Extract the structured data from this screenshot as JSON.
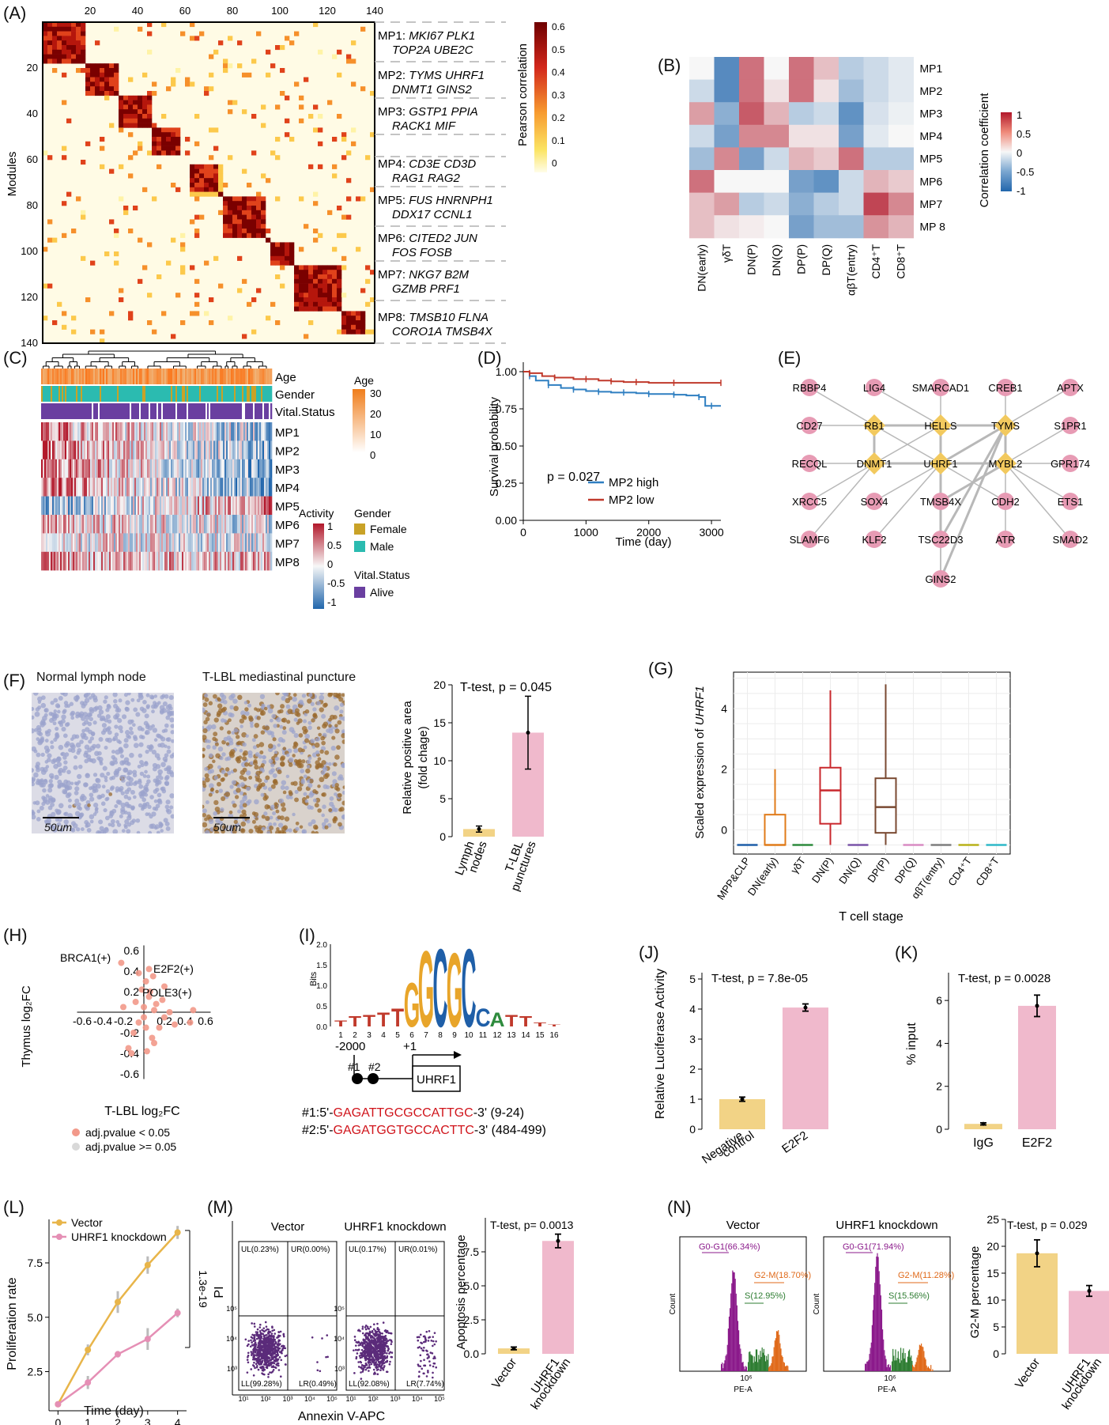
{
  "panel_labels": [
    "(A)",
    "(B)",
    "(C)",
    "(D)",
    "(E)",
    "(F)",
    "(G)",
    "(H)",
    "(I)",
    "(J)",
    "(K)",
    "(L)",
    "(M)",
    "(N)"
  ],
  "panelA": {
    "ylabel": "Modules",
    "ticks": [
      "20",
      "40",
      "60",
      "80",
      "100",
      "120",
      "140"
    ],
    "legend_title": "Pearson correlation",
    "legend_ticks": [
      "0.6",
      "0.5",
      "0.4",
      "0.3",
      "0.2",
      "0.1",
      "0"
    ],
    "mp": [
      {
        "id": "MP1:",
        "genes1": "MKI67 PLK1",
        "genes2": "TOP2A UBE2C"
      },
      {
        "id": "MP2:",
        "genes1": "TYMS UHRF1",
        "genes2": "DNMT1 GINS2"
      },
      {
        "id": "MP3:",
        "genes1": "GSTP1 PPIA",
        "genes2": "RACK1 MIF"
      },
      {
        "id": "MP4:",
        "genes1": "CD3E CD3D",
        "genes2": "RAG1 RAG2"
      },
      {
        "id": "MP5:",
        "genes1": "FUS HNRNPH1",
        "genes2": "DDX17 CCNL1"
      },
      {
        "id": "MP6:",
        "genes1": "CITED2 JUN",
        "genes2": "FOS FOSB"
      },
      {
        "id": "MP7:",
        "genes1": "NKG7 B2M",
        "genes2": "GZMB PRF1"
      },
      {
        "id": "MP8:",
        "genes1": "TMSB10 FLNA",
        "genes2": "CORO1A TMSB4X"
      }
    ]
  },
  "panelB": {
    "rows": [
      "MP1",
      "MP2",
      "MP3",
      "MP4",
      "MP5",
      "MP6",
      "MP7",
      "MP 8"
    ],
    "cols": [
      "DN(early)",
      "γδT",
      "DN(P)",
      "DN(Q)",
      "DP(P)",
      "DP(Q)",
      "αβT(entry)",
      "CD4⁺T",
      "CD8⁺T"
    ],
    "matrix": [
      [
        0.0,
        -0.75,
        0.6,
        0.0,
        0.6,
        0.25,
        -0.3,
        -0.2,
        -0.1
      ],
      [
        -0.2,
        -0.75,
        0.6,
        0.1,
        0.6,
        0.1,
        -0.4,
        -0.2,
        -0.1
      ],
      [
        0.4,
        -0.5,
        0.7,
        0.3,
        -0.3,
        -0.2,
        -0.7,
        -0.15,
        -0.05
      ],
      [
        -0.2,
        -0.6,
        0.5,
        0.5,
        0.1,
        0.1,
        -0.6,
        -0.1,
        0.0
      ],
      [
        -0.4,
        0.5,
        -0.6,
        -0.2,
        0.3,
        0.2,
        0.6,
        -0.3,
        -0.3
      ],
      [
        0.6,
        0.0,
        0.0,
        0.0,
        -0.6,
        -0.7,
        -0.2,
        0.3,
        0.2
      ],
      [
        0.25,
        0.4,
        -0.3,
        -0.2,
        -0.5,
        -0.3,
        -0.2,
        0.8,
        0.5
      ],
      [
        0.25,
        0.1,
        0.05,
        0.0,
        -0.6,
        -0.4,
        -0.4,
        0.45,
        0.3
      ]
    ],
    "legend_title": "Correlation coefficient",
    "legend_ticks": [
      "1",
      "0.5",
      "0",
      "-0.5",
      "-1"
    ]
  },
  "panelC": {
    "annot": [
      "Age",
      "Gender",
      "Vital.Status"
    ],
    "rows": [
      "MP1",
      "MP2",
      "MP3",
      "MP4",
      "MP5",
      "MP6",
      "MP7",
      "MP8"
    ],
    "age_title": "Age",
    "age_ticks": [
      "30",
      "20",
      "10",
      "0"
    ],
    "activity_title": "Activity",
    "activity_ticks": [
      "1",
      "0.5",
      "0",
      "-0.5",
      "-1"
    ],
    "gender_title": "Gender",
    "gender_items": [
      {
        "label": "Female",
        "color": "#c9a227"
      },
      {
        "label": "Male",
        "color": "#2bbbb0"
      }
    ],
    "vital_title": "Vital.Status",
    "vital_items": [
      {
        "label": "Alive",
        "color": "#6a3fa0"
      }
    ]
  },
  "panelD": {
    "ylabel": "Survival probability",
    "xlabel": "Time (day)",
    "pvalue": "p = 0.027",
    "legend": [
      {
        "label": "MP2 high",
        "color": "#2f7fc1"
      },
      {
        "label": "MP2 low",
        "color": "#c0392b"
      }
    ],
    "chart_data": {
      "type": "line",
      "x_ticks": [
        "0",
        "1000",
        "2000",
        "3000"
      ],
      "y_ticks": [
        "0.00",
        "0.25",
        "0.50",
        "0.75",
        "1.00"
      ],
      "xlim": [
        0,
        3150
      ],
      "ylim": [
        0,
        1
      ],
      "series": [
        {
          "name": "MP2 high",
          "x": [
            0,
            100,
            200,
            400,
            600,
            800,
            1000,
            1200,
            1400,
            1600,
            1800,
            2000,
            2200,
            2400,
            2600,
            2800,
            2900,
            3000,
            3150
          ],
          "y": [
            1.0,
            0.97,
            0.94,
            0.91,
            0.89,
            0.88,
            0.87,
            0.865,
            0.86,
            0.86,
            0.855,
            0.85,
            0.85,
            0.845,
            0.84,
            0.83,
            0.77,
            0.77,
            0.77
          ]
        },
        {
          "name": "MP2 low",
          "x": [
            0,
            100,
            300,
            500,
            800,
            1000,
            1200,
            1400,
            1600,
            1800,
            2000,
            2400,
            2800,
            3150
          ],
          "y": [
            1.0,
            0.99,
            0.97,
            0.96,
            0.95,
            0.95,
            0.94,
            0.935,
            0.93,
            0.93,
            0.925,
            0.925,
            0.925,
            0.925
          ]
        }
      ]
    }
  },
  "panelE": {
    "nodes": [
      {
        "label": "RBBP4",
        "shape": "c"
      },
      {
        "label": "LIG4",
        "shape": "c"
      },
      {
        "label": "SMARCAD1",
        "shape": "c"
      },
      {
        "label": "CREB1",
        "shape": "c"
      },
      {
        "label": "APTX",
        "shape": "c"
      },
      {
        "label": "CD27",
        "shape": "c"
      },
      {
        "label": "RB1",
        "shape": "d"
      },
      {
        "label": "HELLS",
        "shape": "d"
      },
      {
        "label": "TYMS",
        "shape": "d"
      },
      {
        "label": "S1PR1",
        "shape": "c"
      },
      {
        "label": "RECQL",
        "shape": "c"
      },
      {
        "label": "DNMT1",
        "shape": "d"
      },
      {
        "label": "UHRF1",
        "shape": "d"
      },
      {
        "label": "MYBL2",
        "shape": "d"
      },
      {
        "label": "GPR174",
        "shape": "c"
      },
      {
        "label": "XRCC5",
        "shape": "c"
      },
      {
        "label": "SOX4",
        "shape": "c"
      },
      {
        "label": "TMSB4X",
        "shape": "c"
      },
      {
        "label": "CDH2",
        "shape": "c"
      },
      {
        "label": "ETS1",
        "shape": "c"
      },
      {
        "label": "SLAMF6",
        "shape": "c"
      },
      {
        "label": "KLF2",
        "shape": "c"
      },
      {
        "label": "TSC22D3",
        "shape": "c"
      },
      {
        "label": "ATR",
        "shape": "c"
      },
      {
        "label": "SMAD2",
        "shape": "c"
      },
      {
        "label": "GINS2",
        "shape": "c"
      }
    ]
  },
  "panelF": {
    "img1_title": "Normal lymph node",
    "img2_title": "T-LBL mediastinal puncture",
    "scale": "50um",
    "test": "T-test, p = 0.045",
    "ylabel1": "Relative positive area",
    "ylabel2": "(fold chage)",
    "chart_data": {
      "type": "bar",
      "categories": [
        "Lymph nodes",
        "T-LBL punctures"
      ],
      "values": [
        1.0,
        13.7
      ],
      "error": [
        0.4,
        4.8
      ],
      "ylim": [
        0,
        20
      ],
      "y_ticks": [
        "0",
        "5",
        "10",
        "15",
        "20"
      ]
    }
  },
  "panelG": {
    "ylabel_pre": "Scaled expression of ",
    "ylabel_gene": "UHRF1",
    "xlabel": "T cell stage",
    "chart_data": {
      "type": "box",
      "categories": [
        "MPP&CLP",
        "DN(early)",
        "γδT",
        "DN(P)",
        "DN(Q)",
        "DP(P)",
        "DP(Q)",
        "αβT(entry)",
        "CD4⁺T",
        "CD8⁺T"
      ],
      "colors": [
        "#1f5fa8",
        "#e07b1a",
        "#2e8b3d",
        "#c9282d",
        "#7a55a8",
        "#7a4a32",
        "#d98cc4",
        "#7f7f7f",
        "#b8b21a",
        "#2fb8c8"
      ],
      "q1": [
        -0.5,
        -0.5,
        -0.5,
        0.2,
        -0.5,
        -0.1,
        -0.5,
        -0.5,
        -0.5,
        -0.5
      ],
      "median": [
        -0.5,
        -0.5,
        -0.5,
        1.3,
        -0.5,
        0.75,
        -0.5,
        -0.5,
        -0.5,
        -0.5
      ],
      "q3": [
        -0.5,
        0.5,
        -0.5,
        2.05,
        -0.5,
        1.7,
        -0.5,
        -0.5,
        -0.5,
        -0.5
      ],
      "lo": [
        -0.5,
        -0.5,
        -0.5,
        -0.5,
        -0.5,
        -0.5,
        -0.5,
        -0.5,
        -0.5,
        -0.5
      ],
      "hi": [
        -0.5,
        2.0,
        -0.5,
        4.6,
        -0.5,
        4.8,
        -0.5,
        -0.5,
        -0.5,
        -0.5
      ],
      "ylim": [
        -0.8,
        5.2
      ],
      "y_ticks": [
        "0",
        "2",
        "4"
      ]
    }
  },
  "panelH": {
    "ylabel": "Thymus log₂FC",
    "xlabel": "T-LBL log₂FC",
    "labels": [
      "BRCA1(+)",
      "E2F2(+)",
      "POLE3(+)"
    ],
    "ticks": [
      "0.6",
      "0.4",
      "0.2",
      "-0.2",
      "-0.4",
      "-0.6"
    ],
    "xticks": [
      "-0.6",
      "-0.4",
      "-0.2",
      "0.2",
      "0.4",
      "0.6"
    ],
    "legend": [
      {
        "label": "adj.pvalue < 0.05",
        "color": "#f2998a"
      },
      {
        "label": "adj.pvalue >= 0.05",
        "color": "#d9d9d9"
      }
    ],
    "chart_data": {
      "type": "scatter",
      "xlim": [
        -0.65,
        0.65
      ],
      "ylim": [
        -0.65,
        0.65
      ],
      "points": [
        [
          -0.22,
          0.48
        ],
        [
          0.05,
          0.42
        ],
        [
          0.02,
          0.3
        ],
        [
          -0.08,
          0.1
        ],
        [
          0.0,
          0.05
        ],
        [
          0.05,
          0.15
        ],
        [
          0.1,
          0.02
        ],
        [
          0.2,
          -0.05
        ],
        [
          0.25,
          0.0
        ],
        [
          0.45,
          -0.1
        ],
        [
          0.48,
          0.02
        ],
        [
          -0.05,
          -0.1
        ],
        [
          0.02,
          -0.15
        ],
        [
          0.08,
          -0.25
        ],
        [
          0.1,
          -0.3
        ],
        [
          -0.1,
          -0.2
        ],
        [
          -0.15,
          -0.35
        ],
        [
          -0.12,
          -0.4
        ],
        [
          0.0,
          -0.05
        ],
        [
          0.12,
          0.08
        ],
        [
          0.18,
          0.12
        ],
        [
          -0.02,
          0.22
        ],
        [
          0.06,
          0.2
        ],
        [
          0.15,
          -0.15
        ],
        [
          0.3,
          -0.12
        ],
        [
          -0.2,
          0.05
        ],
        [
          0.03,
          -0.38
        ],
        [
          0.09,
          0.35
        ],
        [
          -0.05,
          0.38
        ],
        [
          0.2,
          0.25
        ]
      ]
    }
  },
  "panelI": {
    "ylabel": "Bits",
    "yticks": [
      "2.0",
      "1.5",
      "1.0",
      "0.5",
      "0.0"
    ],
    "positions": [
      "1",
      "2",
      "3",
      "4",
      "5",
      "6",
      "7",
      "8",
      "9",
      "10",
      "11",
      "12",
      "13",
      "14",
      "15",
      "16"
    ],
    "logo": [
      {
        "l": "T",
        "h": 0.15,
        "c": "#c0392b"
      },
      {
        "l": "T",
        "h": 0.25,
        "c": "#c0392b"
      },
      {
        "l": "T",
        "h": 0.3,
        "c": "#c0392b"
      },
      {
        "l": "T",
        "h": 0.35,
        "c": "#c0392b"
      },
      {
        "l": "T",
        "h": 0.45,
        "c": "#c0392b"
      },
      {
        "l": "G",
        "h": 1.1,
        "c": "#e8a52a"
      },
      {
        "l": "G",
        "h": 1.9,
        "c": "#e8a52a"
      },
      {
        "l": "C",
        "h": 1.95,
        "c": "#1f5fa8"
      },
      {
        "l": "G",
        "h": 1.85,
        "c": "#e8a52a"
      },
      {
        "l": "C",
        "h": 1.95,
        "c": "#1f5fa8"
      },
      {
        "l": "C",
        "h": 0.45,
        "c": "#1f5fa8"
      },
      {
        "l": "A",
        "h": 0.35,
        "c": "#2e8b3d"
      },
      {
        "l": "T",
        "h": 0.3,
        "c": "#c0392b"
      },
      {
        "l": "T",
        "h": 0.25,
        "c": "#c0392b"
      },
      {
        "l": "T",
        "h": 0.1,
        "c": "#c0392b"
      },
      {
        "l": "T",
        "h": 0.05,
        "c": "#c0392b"
      }
    ],
    "pos_left": "-2000",
    "pos_right": "+1",
    "site1": "#1",
    "site2": "#2",
    "gene": "UHRF1",
    "seqs": [
      {
        "pre": "#1:5'-",
        "seq": "GAGATTGCGCCATTGC",
        "post": "-3' (9-24)"
      },
      {
        "pre": "#2:5'-",
        "seq": "GAGATGGTGCCACTTC",
        "post": "-3' (484-499)"
      }
    ]
  },
  "panelJ": {
    "test": "T-test, p = 7.8e-05",
    "ylabel": "Relative Luciferase Activity",
    "chart_data": {
      "type": "bar",
      "categories": [
        "Negative control",
        "E2F2"
      ],
      "values": [
        1.0,
        4.05
      ],
      "error": [
        0.07,
        0.12
      ],
      "ylim": [
        0,
        5
      ],
      "y_ticks": [
        "0",
        "1",
        "2",
        "3",
        "4",
        "5"
      ]
    }
  },
  "panelK": {
    "test": "T-test, p = 0.0028",
    "ylabel": "% input",
    "chart_data": {
      "type": "bar",
      "categories": [
        "IgG",
        "E2F2"
      ],
      "values": [
        0.25,
        5.75
      ],
      "error": [
        0.05,
        0.5
      ],
      "ylim": [
        0,
        7
      ],
      "y_ticks": [
        "0",
        "2",
        "4",
        "6"
      ]
    }
  },
  "panelL": {
    "ylabel": "Proliferation rate",
    "xlabel": "Time (day)",
    "pval": "1.3e-19",
    "chart_data": {
      "type": "line",
      "x": [
        0,
        1,
        2,
        3,
        4
      ],
      "xlim": [
        -0.3,
        4.3
      ],
      "ylim": [
        0.7,
        9.5
      ],
      "x_ticks": [
        "0",
        "1",
        "2",
        "3",
        "4"
      ],
      "y_ticks": [
        "2.5",
        "5.0",
        "7.5"
      ],
      "series": [
        {
          "name": "Vector",
          "color": "#e8b54a",
          "y": [
            1.0,
            3.5,
            5.7,
            7.4,
            8.9
          ],
          "err": [
            0.1,
            0.25,
            0.5,
            0.4,
            0.3
          ]
        },
        {
          "name": "UHRF1 knockdown",
          "color": "#e58fb5",
          "y": [
            1.0,
            2.0,
            3.3,
            4.0,
            5.2
          ],
          "err": [
            0.1,
            0.3,
            0.15,
            0.5,
            0.2
          ]
        }
      ]
    }
  },
  "panelM": {
    "ylabel": "PI",
    "xlabel": "Annexin V-APC",
    "plots": [
      {
        "title": "Vector",
        "ul": "UL(0.23%)",
        "ur": "UR(0.00%)",
        "ll": "LL(99.28%)",
        "lr": "LR(0.49%)"
      },
      {
        "title": "UHRF1 knockdown",
        "ul": "UL(0.17%)",
        "ur": "UR(0.01%)",
        "ll": "LL(92.08%)",
        "lr": "LR(7.74%)"
      }
    ],
    "axis_ticks": [
      "10¹",
      "10²",
      "10³",
      "10⁴",
      "10⁵"
    ],
    "test": "T-test, p= 0.0013",
    "bar_ylabel": "Apoptosis percentage",
    "chart_data": {
      "type": "bar",
      "categories": [
        "Vector",
        "UHRF1 knockdown"
      ],
      "values": [
        0.4,
        8.3
      ],
      "error": [
        0.1,
        0.5
      ],
      "ylim": [
        0,
        10
      ],
      "y_ticks": [
        "0.0",
        "2.5",
        "5.0",
        "7.5"
      ]
    }
  },
  "panelN": {
    "plots": [
      {
        "title": "Vector",
        "g0": "G0-G1(66.34%)",
        "s": "S(12.95%)",
        "g2": "G2-M(18.70%)"
      },
      {
        "title": "UHRF1 knockdown",
        "g0": "G0-G1(71.94%)",
        "s": "S(15.56%)",
        "g2": "G2-M(11.28%)"
      }
    ],
    "count": "Count",
    "pea": "PE-A",
    "tick": "10⁶",
    "test": "T-test, p = 0.029",
    "bar_ylabel": "G2-M percentage",
    "chart_data": {
      "type": "bar",
      "categories": [
        "Vector",
        "UHRF1 knockdown"
      ],
      "values": [
        18.7,
        11.7
      ],
      "error": [
        2.5,
        1.0
      ],
      "ylim": [
        0,
        25
      ],
      "y_ticks": [
        "0",
        "5",
        "10",
        "15",
        "20",
        "25"
      ]
    }
  },
  "colors": {
    "pink_bar": "#f0b9cc",
    "yellow_bar": "#f2d386",
    "heat_high": "#7a0000",
    "heat_low": "#ffffd0"
  }
}
